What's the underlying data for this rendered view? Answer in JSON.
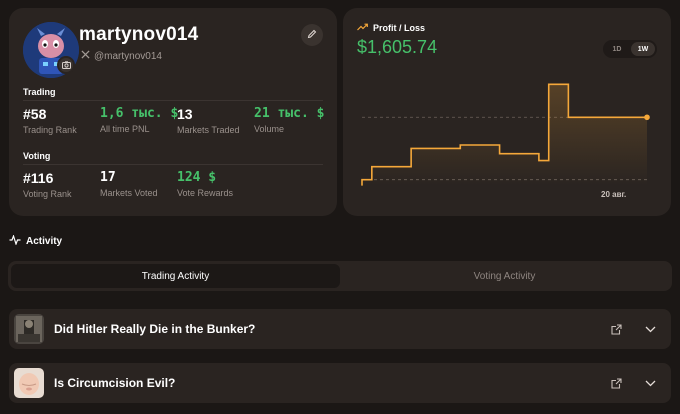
{
  "profile": {
    "username": "martynov014",
    "handle": "@martynov014",
    "trading": {
      "heading": "Trading",
      "rank_value": "#58",
      "rank_label": "Trading Rank",
      "pnl_value": "1,6 тыс. $",
      "pnl_label": "All time PNL",
      "markets_value": "13",
      "markets_label": "Markets Traded",
      "volume_value": "21 тыс. $",
      "volume_label": "Volume"
    },
    "voting": {
      "heading": "Voting",
      "rank_value": "#116",
      "rank_label": "Voting Rank",
      "voted_value": "17",
      "voted_label": "Markets Voted",
      "rewards_value": "124 $",
      "rewards_label": "Vote Rewards"
    }
  },
  "pnl": {
    "title": "Profit / Loss",
    "value": "$1,605.74",
    "ranges": [
      "1D",
      "1W"
    ],
    "active_range": "1W",
    "x_tick": "20 авг."
  },
  "chart_data": {
    "type": "line",
    "title": "Profit / Loss",
    "x_label": "",
    "y_label": "",
    "x_ticks": [
      "20 авг."
    ],
    "series": [
      {
        "values": [
          0.0,
          0.15,
          0.15,
          0.15,
          0.15,
          0.36,
          0.36,
          0.36,
          0.36,
          0.36,
          0.4,
          0.4,
          0.4,
          0.4,
          0.3,
          0.3,
          0.3,
          0.3,
          0.22,
          1.1,
          1.1,
          0.72,
          0.72,
          0.72,
          0.72,
          0.72,
          0.72,
          0.72,
          0.72,
          0.72
        ]
      }
    ],
    "grid": false,
    "color": "#f5a83a"
  },
  "activity": {
    "heading": "Activity",
    "tabs": [
      "Trading Activity",
      "Voting Activity"
    ],
    "active_tab": 0,
    "markets": [
      {
        "title": "Did Hitler Really Die in the Bunker?"
      },
      {
        "title": "Is Circumcision Evil?"
      }
    ]
  },
  "colors": {
    "accent_green": "#46c06a",
    "chart_orange": "#f5a83a",
    "card_bg": "#2a2421",
    "page_bg": "#1b1715"
  }
}
